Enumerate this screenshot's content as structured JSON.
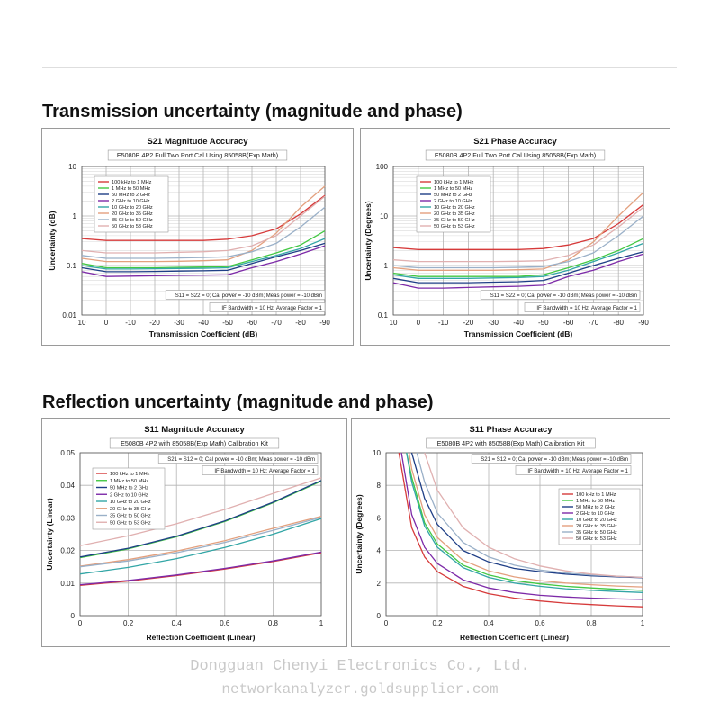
{
  "headings": {
    "transmission": "Transmission uncertainty (magnitude and phase)",
    "reflection": "Reflection uncertainty (magnitude and phase)"
  },
  "watermark": {
    "line1": "Dongguan Chenyi Electronics Co., Ltd.",
    "line2": "networkanalyzer.goldsupplier.com"
  },
  "colors": {
    "grid": "#b4b4b4",
    "axis": "#555555",
    "series": [
      "#d63a3a",
      "#43c843",
      "#1e3e86",
      "#7d2aa8",
      "#33a6a6",
      "#e3a07e",
      "#9ab0c8",
      "#e0b0b0"
    ]
  },
  "chart_data": [
    {
      "type": "line",
      "title": "S21 Magnitude Accuracy",
      "subtitle": "E5080B 4P2 Full Two Port Cal Using 85058B(Exp Math)",
      "xlabel": "Transmission Coefficient (dB)",
      "ylabel": "Uncertainty (dB)",
      "x_ticks": [
        10,
        0,
        -10,
        -20,
        -30,
        -40,
        -50,
        -60,
        -70,
        -80,
        -90
      ],
      "xlim": [
        10,
        -90
      ],
      "y_scale": "log",
      "ylim": [
        0.01,
        10
      ],
      "y_ticks": [
        0.01,
        0.1,
        1,
        10
      ],
      "y_tick_labels": [
        "0.01",
        "0.1",
        "1",
        "10"
      ],
      "notes": [
        "S11 = S22 = 0; Cal power = -10 dBm; Meas power = -10 dBm",
        "IF Bandwidth = 10 Hz; Average Factor = 1"
      ],
      "legend": "top-left",
      "series": [
        {
          "name": "100 kHz to 1 MHz",
          "x": [
            10,
            0,
            -10,
            -20,
            -30,
            -40,
            -50,
            -60,
            -70,
            -80,
            -90
          ],
          "y": [
            0.35,
            0.32,
            0.32,
            0.32,
            0.32,
            0.32,
            0.34,
            0.4,
            0.55,
            1.1,
            2.6
          ]
        },
        {
          "name": "1 MHz to 50 MHz",
          "x": [
            10,
            0,
            -10,
            -20,
            -30,
            -40,
            -50,
            -60,
            -70,
            -80,
            -90
          ],
          "y": [
            0.11,
            0.09,
            0.09,
            0.09,
            0.092,
            0.093,
            0.095,
            0.13,
            0.18,
            0.26,
            0.5
          ]
        },
        {
          "name": "50 MHz to 2 GHz",
          "x": [
            10,
            0,
            -10,
            -20,
            -30,
            -40,
            -50,
            -60,
            -70,
            -80,
            -90
          ],
          "y": [
            0.09,
            0.075,
            0.075,
            0.076,
            0.077,
            0.078,
            0.08,
            0.11,
            0.15,
            0.2,
            0.28
          ]
        },
        {
          "name": "2 GHz to 10 GHz",
          "x": [
            10,
            0,
            -10,
            -20,
            -30,
            -40,
            -50,
            -60,
            -70,
            -80,
            -90
          ],
          "y": [
            0.075,
            0.06,
            0.061,
            0.062,
            0.063,
            0.064,
            0.065,
            0.09,
            0.12,
            0.17,
            0.25
          ]
        },
        {
          "name": "10 GHz to 20 GHz",
          "x": [
            10,
            0,
            -10,
            -20,
            -30,
            -40,
            -50,
            -60,
            -70,
            -80,
            -90
          ],
          "y": [
            0.1,
            0.085,
            0.085,
            0.086,
            0.087,
            0.088,
            0.09,
            0.12,
            0.16,
            0.22,
            0.35
          ]
        },
        {
          "name": "20 GHz to 35 GHz",
          "x": [
            10,
            0,
            -10,
            -20,
            -30,
            -40,
            -50,
            -60,
            -70,
            -80,
            -90
          ],
          "y": [
            0.14,
            0.12,
            0.12,
            0.12,
            0.122,
            0.125,
            0.13,
            0.2,
            0.45,
            1.5,
            4
          ]
        },
        {
          "name": "35 GHz to 50 GHz",
          "x": [
            10,
            0,
            -10,
            -20,
            -30,
            -40,
            -50,
            -60,
            -70,
            -80,
            -90
          ],
          "y": [
            0.16,
            0.14,
            0.14,
            0.14,
            0.142,
            0.145,
            0.15,
            0.19,
            0.28,
            0.6,
            1.5
          ]
        },
        {
          "name": "50 GHz to 53 GHz",
          "x": [
            10,
            0,
            -10,
            -20,
            -30,
            -40,
            -50,
            -60,
            -70,
            -80,
            -90
          ],
          "y": [
            0.2,
            0.18,
            0.18,
            0.18,
            0.185,
            0.19,
            0.2,
            0.25,
            0.4,
            1.0,
            2.5
          ]
        }
      ]
    },
    {
      "type": "line",
      "title": "S21 Phase Accuracy",
      "subtitle": "E5080B 4P2 Full Two Port Cal Using 85058B(Exp Math)",
      "xlabel": "Transmission Coefficient (dB)",
      "ylabel": "Uncertainty (Degrees)",
      "x_ticks": [
        10,
        0,
        -10,
        -20,
        -30,
        -40,
        -50,
        -60,
        -70,
        -80,
        -90
      ],
      "xlim": [
        10,
        -90
      ],
      "y_scale": "log",
      "ylim": [
        0.1,
        100
      ],
      "y_ticks": [
        0.1,
        1,
        10,
        100
      ],
      "y_tick_labels": [
        "0.1",
        "1",
        "10",
        "100"
      ],
      "notes": [
        "S11 = S22 = 0; Cal power = -10 dBm; Meas power = -10 dBm",
        "IF Bandwidth = 10 Hz; Average Factor = 1"
      ],
      "legend": "top-left",
      "series": [
        {
          "name": "100 kHz to 1 MHz",
          "x": [
            10,
            0,
            -10,
            -20,
            -30,
            -40,
            -50,
            -60,
            -70,
            -80,
            -90
          ],
          "y": [
            2.3,
            2.1,
            2.1,
            2.1,
            2.1,
            2.1,
            2.2,
            2.6,
            3.5,
            7,
            17
          ]
        },
        {
          "name": "1 MHz to 50 MHz",
          "x": [
            10,
            0,
            -10,
            -20,
            -30,
            -40,
            -50,
            -60,
            -70,
            -80,
            -90
          ],
          "y": [
            0.7,
            0.6,
            0.6,
            0.6,
            0.6,
            0.6,
            0.65,
            0.9,
            1.3,
            2,
            3.5
          ]
        },
        {
          "name": "50 MHz to 2 GHz",
          "x": [
            10,
            0,
            -10,
            -20,
            -30,
            -40,
            -50,
            -60,
            -70,
            -80,
            -90
          ],
          "y": [
            0.55,
            0.45,
            0.45,
            0.45,
            0.46,
            0.47,
            0.5,
            0.7,
            1.0,
            1.4,
            1.9
          ]
        },
        {
          "name": "2 GHz to 10 GHz",
          "x": [
            10,
            0,
            -10,
            -20,
            -30,
            -40,
            -50,
            -60,
            -70,
            -80,
            -90
          ],
          "y": [
            0.45,
            0.35,
            0.35,
            0.36,
            0.37,
            0.38,
            0.4,
            0.6,
            0.8,
            1.2,
            1.7
          ]
        },
        {
          "name": "10 GHz to 20 GHz",
          "x": [
            10,
            0,
            -10,
            -20,
            -30,
            -40,
            -50,
            -60,
            -70,
            -80,
            -90
          ],
          "y": [
            0.65,
            0.55,
            0.55,
            0.55,
            0.56,
            0.57,
            0.6,
            0.8,
            1.2,
            1.8,
            2.8
          ]
        },
        {
          "name": "20 GHz to 35 GHz",
          "x": [
            10,
            0,
            -10,
            -20,
            -30,
            -40,
            -50,
            -60,
            -70,
            -80,
            -90
          ],
          "y": [
            0.9,
            0.8,
            0.8,
            0.8,
            0.8,
            0.82,
            0.85,
            1.3,
            3,
            10,
            30
          ]
        },
        {
          "name": "35 GHz to 50 GHz",
          "x": [
            10,
            0,
            -10,
            -20,
            -30,
            -40,
            -50,
            -60,
            -70,
            -80,
            -90
          ],
          "y": [
            1.0,
            0.9,
            0.9,
            0.9,
            0.9,
            0.92,
            0.95,
            1.2,
            1.8,
            4,
            10
          ]
        },
        {
          "name": "50 GHz to 53 GHz",
          "x": [
            10,
            0,
            -10,
            -20,
            -30,
            -40,
            -50,
            -60,
            -70,
            -80,
            -90
          ],
          "y": [
            1.3,
            1.2,
            1.2,
            1.2,
            1.2,
            1.22,
            1.25,
            1.6,
            2.6,
            6,
            15
          ]
        }
      ]
    },
    {
      "type": "line",
      "title": "S11 Magnitude Accuracy",
      "subtitle": "E5080B 4P2 with 85058B(Exp Math) Calibration Kit",
      "xlabel": "Reflection Coefficient (Linear)",
      "ylabel": "Uncertainty (Linear)",
      "x_ticks": [
        0,
        0.2,
        0.4,
        0.6,
        0.8,
        1
      ],
      "xlim": [
        0,
        1
      ],
      "y_scale": "linear",
      "ylim": [
        0,
        0.05
      ],
      "y_ticks": [
        0,
        0.01,
        0.02,
        0.03,
        0.04,
        0.05
      ],
      "y_tick_labels": [
        "0",
        "0.01",
        "0.02",
        "0.03",
        "0.04",
        "0.05"
      ],
      "notes": [
        "S21 = S12 = 0; Cal power = -10 dBm; Meas power = -10 dBm",
        "IF Bandwidth = 10 Hz; Average Factor = 1"
      ],
      "legend": "left",
      "series": [
        {
          "name": "100 kHz to 1 MHz",
          "x": [
            0,
            0.2,
            0.4,
            0.6,
            0.8,
            1
          ],
          "y": [
            0.0093,
            0.0106,
            0.0123,
            0.0143,
            0.0166,
            0.0193
          ]
        },
        {
          "name": "1 MHz to 50 MHz",
          "x": [
            0,
            0.2,
            0.4,
            0.6,
            0.8,
            1
          ],
          "y": [
            0.0178,
            0.0205,
            0.0242,
            0.0289,
            0.0346,
            0.0413
          ]
        },
        {
          "name": "50 MHz to 2 GHz",
          "x": [
            0,
            0.2,
            0.4,
            0.6,
            0.8,
            1
          ],
          "y": [
            0.018,
            0.0207,
            0.0244,
            0.0291,
            0.0348,
            0.0415
          ]
        },
        {
          "name": "2 GHz to 10 GHz",
          "x": [
            0,
            0.2,
            0.4,
            0.6,
            0.8,
            1
          ],
          "y": [
            0.0095,
            0.0108,
            0.0125,
            0.0145,
            0.0168,
            0.0195
          ]
        },
        {
          "name": "10 GHz to 20 GHz",
          "x": [
            0,
            0.2,
            0.4,
            0.6,
            0.8,
            1
          ],
          "y": [
            0.0128,
            0.0148,
            0.0175,
            0.0209,
            0.025,
            0.0298
          ]
        },
        {
          "name": "20 GHz to 35 GHz",
          "x": [
            0,
            0.2,
            0.4,
            0.6,
            0.8,
            1
          ],
          "y": [
            0.0152,
            0.0172,
            0.0198,
            0.023,
            0.0268,
            0.0305
          ]
        },
        {
          "name": "35 GHz to 50 GHz",
          "x": [
            0,
            0.2,
            0.4,
            0.6,
            0.8,
            1
          ],
          "y": [
            0.015,
            0.0168,
            0.0193,
            0.0225,
            0.0262,
            0.0302
          ]
        },
        {
          "name": "50 GHz to 53 GHz",
          "x": [
            0,
            0.2,
            0.4,
            0.6,
            0.8,
            1
          ],
          "y": [
            0.0215,
            0.0245,
            0.0282,
            0.0326,
            0.0375,
            0.0423
          ]
        }
      ]
    },
    {
      "type": "line",
      "title": "S11 Phase Accuracy",
      "subtitle": "E5080B 4P2 with 85058B(Exp Math) Calibration Kit",
      "xlabel": "Reflection Coefficient (Linear)",
      "ylabel": "Uncertainty (Degrees)",
      "x_ticks": [
        0,
        0.2,
        0.4,
        0.6,
        0.8,
        1
      ],
      "xlim": [
        0,
        1
      ],
      "y_scale": "linear",
      "ylim": [
        0,
        10
      ],
      "y_ticks": [
        0,
        2,
        4,
        6,
        8,
        10
      ],
      "y_tick_labels": [
        "0",
        "2",
        "4",
        "6",
        "8",
        "10"
      ],
      "notes": [
        "S21 = S12 = 0; Cal power = -10 dBm; Meas power = -10 dBm",
        "IF Bandwidth = 10 Hz; Average Factor = 1"
      ],
      "legend": "right",
      "series": [
        {
          "name": "100 kHz to 1 MHz",
          "x": [
            0.05,
            0.1,
            0.15,
            0.2,
            0.3,
            0.4,
            0.5,
            0.6,
            0.7,
            0.8,
            0.9,
            1.0
          ],
          "y": [
            10,
            5.4,
            3.6,
            2.7,
            1.8,
            1.35,
            1.08,
            0.9,
            0.77,
            0.68,
            0.6,
            0.54
          ]
        },
        {
          "name": "1 MHz to 50 MHz",
          "x": [
            0.08,
            0.1,
            0.15,
            0.2,
            0.3,
            0.4,
            0.5,
            0.6,
            0.7,
            0.8,
            0.9,
            1.0
          ],
          "y": [
            10,
            8.5,
            5.7,
            4.4,
            3.1,
            2.5,
            2.15,
            1.95,
            1.8,
            1.7,
            1.62,
            1.55
          ]
        },
        {
          "name": "50 MHz to 2 GHz",
          "x": [
            0.1,
            0.15,
            0.2,
            0.3,
            0.4,
            0.5,
            0.6,
            0.7,
            0.8,
            0.9,
            1.0
          ],
          "y": [
            10,
            7.2,
            5.6,
            4.0,
            3.3,
            2.9,
            2.7,
            2.55,
            2.45,
            2.38,
            2.33
          ]
        },
        {
          "name": "2 GHz to 10 GHz",
          "x": [
            0.06,
            0.1,
            0.15,
            0.2,
            0.3,
            0.4,
            0.5,
            0.6,
            0.7,
            0.8,
            0.9,
            1.0
          ],
          "y": [
            10,
            6.2,
            4.2,
            3.2,
            2.2,
            1.7,
            1.42,
            1.25,
            1.15,
            1.08,
            1.03,
            1.0
          ]
        },
        {
          "name": "10 GHz to 20 GHz",
          "x": [
            0.08,
            0.1,
            0.15,
            0.2,
            0.3,
            0.4,
            0.5,
            0.6,
            0.7,
            0.8,
            0.9,
            1.0
          ],
          "y": [
            10,
            8.2,
            5.5,
            4.2,
            2.95,
            2.35,
            2.0,
            1.8,
            1.65,
            1.55,
            1.48,
            1.42
          ]
        },
        {
          "name": "20 GHz to 35 GHz",
          "x": [
            0.09,
            0.1,
            0.15,
            0.2,
            0.3,
            0.4,
            0.5,
            0.6,
            0.7,
            0.8,
            0.9,
            1.0
          ],
          "y": [
            10,
            9.0,
            6.2,
            4.8,
            3.4,
            2.75,
            2.38,
            2.15,
            2.0,
            1.9,
            1.82,
            1.76
          ]
        },
        {
          "name": "35 GHz to 50 GHz",
          "x": [
            0.12,
            0.15,
            0.2,
            0.3,
            0.4,
            0.5,
            0.6,
            0.7,
            0.8,
            0.9,
            1.0
          ],
          "y": [
            10,
            8.2,
            6.3,
            4.5,
            3.6,
            3.1,
            2.8,
            2.62,
            2.5,
            2.42,
            2.36
          ]
        },
        {
          "name": "50 GHz to 53 GHz",
          "x": [
            0.15,
            0.2,
            0.3,
            0.4,
            0.5,
            0.6,
            0.7,
            0.8,
            0.9,
            1.0
          ],
          "y": [
            10,
            7.7,
            5.4,
            4.2,
            3.5,
            3.05,
            2.75,
            2.55,
            2.42,
            2.35
          ]
        }
      ]
    }
  ]
}
